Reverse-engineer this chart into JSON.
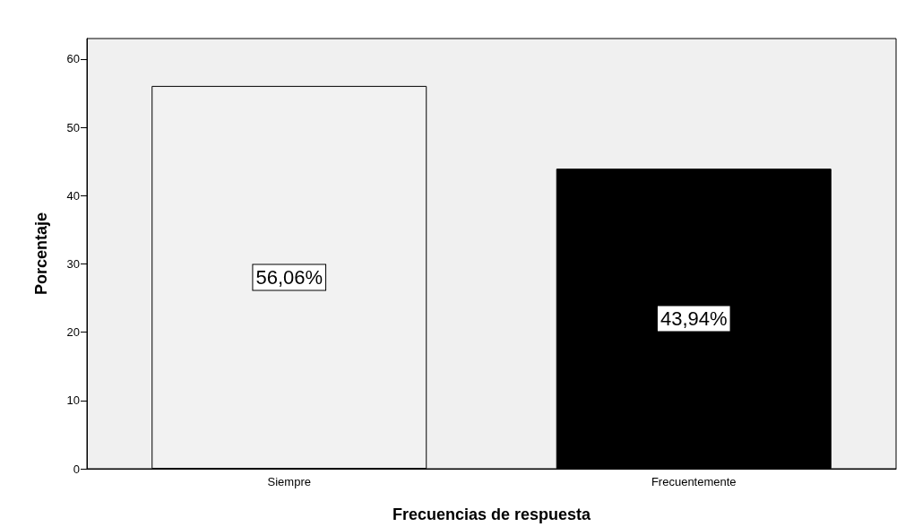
{
  "chart_data": {
    "type": "bar",
    "xlabel": "Frecuencias de respuesta",
    "ylabel": "Porcentaje",
    "categories": [
      "Siempre",
      "Frecuentemente"
    ],
    "values": [
      56.06,
      43.94
    ],
    "colors": [
      "#f2f2f2",
      "#000000"
    ],
    "value_labels": [
      "56,06%",
      "43,94%"
    ],
    "ylim": [
      0,
      63
    ],
    "yticks": [
      0,
      10,
      20,
      30,
      40,
      50,
      60
    ],
    "grid": false
  }
}
